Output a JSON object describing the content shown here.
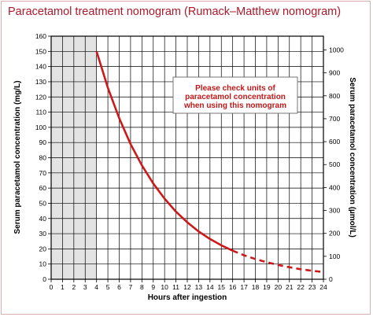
{
  "title": "Paracetamol treatment nomogram (Rumack–Matthew nomogram)",
  "colors": {
    "title": "#b0182a",
    "curve": "#cc1a1a",
    "note": "#c01818",
    "shade": "#e3e3e3",
    "grid": "#000000"
  },
  "chart_data": {
    "type": "line",
    "xlabel": "Hours after ingestion",
    "ylabel": "Serum paracetamol concentration (mg/L)",
    "y2label": "Serum paracetamol concentration (µmol/L)",
    "xlim": [
      0,
      24
    ],
    "ylim": [
      0,
      160
    ],
    "y2lim": [
      0,
      1060
    ],
    "x_ticks": [
      0,
      1,
      2,
      3,
      4,
      5,
      6,
      7,
      8,
      9,
      10,
      11,
      12,
      13,
      14,
      15,
      16,
      17,
      18,
      19,
      20,
      21,
      22,
      23,
      24
    ],
    "y_ticks": [
      0,
      10,
      20,
      30,
      40,
      50,
      60,
      70,
      80,
      90,
      100,
      110,
      120,
      130,
      140,
      150,
      160
    ],
    "y2_ticks": [
      0,
      100,
      200,
      300,
      400,
      500,
      600,
      700,
      800,
      900,
      1000
    ],
    "grid": true,
    "shaded_region_x": [
      0,
      4
    ],
    "annotation": "Please check units of paracetamol concentration when using this nomogram",
    "series": [
      {
        "style": "solid",
        "x": [
          4,
          5,
          6,
          7,
          8,
          9,
          10,
          11,
          12,
          13,
          14,
          15,
          16
        ],
        "y": [
          150,
          126,
          106,
          89,
          75,
          63,
          53,
          44.5,
          37.5,
          31.5,
          26.5,
          22.3,
          18.8
        ]
      },
      {
        "style": "dashed",
        "x": [
          16,
          17,
          18,
          19,
          20,
          21,
          22,
          23,
          24
        ],
        "y": [
          18.8,
          15.8,
          13.3,
          11.2,
          9.4,
          7.9,
          6.6,
          5.6,
          4.7
        ]
      }
    ]
  }
}
